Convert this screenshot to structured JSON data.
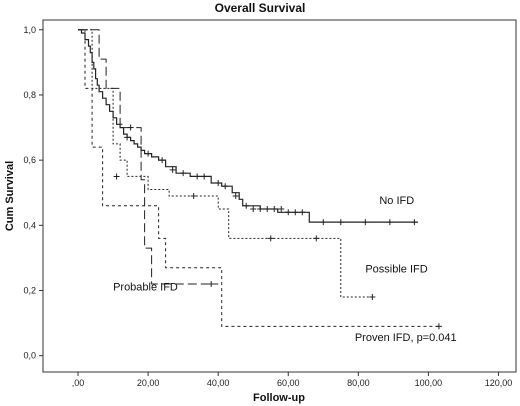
{
  "chart_data": {
    "type": "line",
    "subtype": "kaplan-meier",
    "title": "Overall Survival",
    "xlabel": "Follow-up",
    "ylabel": "Cum Survival",
    "xlim": [
      -10,
      125
    ],
    "ylim": [
      -0.05,
      1.03
    ],
    "x_ticks": [
      0,
      20,
      40,
      60,
      80,
      100,
      120
    ],
    "x_tick_labels": [
      ",00",
      "20,00",
      "40,00",
      "60,00",
      "80,00",
      "100,00",
      "120,00"
    ],
    "y_ticks": [
      0,
      0.2,
      0.4,
      0.6,
      0.8,
      1.0
    ],
    "y_tick_labels": [
      "0,0",
      "0,2",
      "0,4",
      "0,6",
      "0,8",
      "1,0"
    ],
    "grid": false,
    "series": [
      {
        "name": "No IFD",
        "line_style": "solid",
        "steps": [
          [
            0,
            1.0
          ],
          [
            1,
            0.99
          ],
          [
            2,
            0.97
          ],
          [
            3,
            0.95
          ],
          [
            3.5,
            0.93
          ],
          [
            4,
            0.9
          ],
          [
            4.5,
            0.88
          ],
          [
            5,
            0.85
          ],
          [
            5.5,
            0.83
          ],
          [
            6,
            0.81
          ],
          [
            7,
            0.79
          ],
          [
            8,
            0.77
          ],
          [
            9,
            0.75
          ],
          [
            10,
            0.73
          ],
          [
            11,
            0.71
          ],
          [
            12,
            0.7
          ],
          [
            13,
            0.68
          ],
          [
            14,
            0.67
          ],
          [
            15,
            0.66
          ],
          [
            16,
            0.65
          ],
          [
            17,
            0.64
          ],
          [
            18,
            0.63
          ],
          [
            19,
            0.62
          ],
          [
            21,
            0.61
          ],
          [
            23,
            0.6
          ],
          [
            25,
            0.58
          ],
          [
            28,
            0.56
          ],
          [
            32,
            0.55
          ],
          [
            38,
            0.53
          ],
          [
            41,
            0.52
          ],
          [
            44,
            0.5
          ],
          [
            46,
            0.48
          ],
          [
            47,
            0.46
          ],
          [
            52,
            0.45
          ],
          [
            57,
            0.44
          ],
          [
            61,
            0.44
          ],
          [
            66,
            0.41
          ],
          [
            97,
            0.41
          ]
        ],
        "censored": [
          [
            14,
            0.67
          ],
          [
            20,
            0.62
          ],
          [
            24,
            0.6
          ],
          [
            27,
            0.57
          ],
          [
            30,
            0.56
          ],
          [
            34,
            0.55
          ],
          [
            36,
            0.55
          ],
          [
            40,
            0.53
          ],
          [
            42,
            0.52
          ],
          [
            45,
            0.49
          ],
          [
            48,
            0.46
          ],
          [
            50,
            0.45
          ],
          [
            52,
            0.45
          ],
          [
            54,
            0.45
          ],
          [
            56,
            0.45
          ],
          [
            58,
            0.45
          ],
          [
            60,
            0.44
          ],
          [
            62,
            0.44
          ],
          [
            64,
            0.44
          ],
          [
            70,
            0.41
          ],
          [
            75,
            0.41
          ],
          [
            82,
            0.41
          ],
          [
            89,
            0.41
          ],
          [
            96,
            0.41
          ]
        ]
      },
      {
        "name": "Possible IFD",
        "line_style": "dotted",
        "steps": [
          [
            0,
            1.0
          ],
          [
            4,
            0.82
          ],
          [
            10,
            0.65
          ],
          [
            12,
            0.6
          ],
          [
            14,
            0.55
          ],
          [
            20,
            0.51
          ],
          [
            26,
            0.49
          ],
          [
            40,
            0.45
          ],
          [
            43,
            0.36
          ],
          [
            75,
            0.18
          ],
          [
            84,
            0.18
          ]
        ],
        "censored": [
          [
            11,
            0.55
          ],
          [
            33,
            0.49
          ],
          [
            55,
            0.36
          ],
          [
            68,
            0.36
          ],
          [
            84,
            0.18
          ]
        ]
      },
      {
        "name": "Probable IFD",
        "line_style": "dashed",
        "steps": [
          [
            0,
            1.0
          ],
          [
            6,
            0.91
          ],
          [
            8,
            0.82
          ],
          [
            12,
            0.71
          ],
          [
            13,
            0.7
          ],
          [
            18,
            0.54
          ],
          [
            19,
            0.33
          ],
          [
            21,
            0.22
          ],
          [
            40,
            0.22
          ]
        ],
        "censored": [
          [
            15,
            0.7
          ],
          [
            38,
            0.22
          ]
        ]
      },
      {
        "name": "Proven IFD, p=0.041",
        "line_style": "short-dashed",
        "steps": [
          [
            0,
            1.0
          ],
          [
            2,
            0.82
          ],
          [
            4,
            0.64
          ],
          [
            7,
            0.46
          ],
          [
            23,
            0.36
          ],
          [
            25,
            0.27
          ],
          [
            41,
            0.09
          ],
          [
            103,
            0.09
          ]
        ],
        "censored": [
          [
            103,
            0.09
          ]
        ]
      }
    ],
    "annotations": [
      {
        "text": "No IFD",
        "x": 86,
        "y": 0.465
      },
      {
        "text": "Possible IFD",
        "x": 82,
        "y": 0.255
      },
      {
        "text": "Probable IFD",
        "x": 10,
        "y": 0.2
      },
      {
        "text": "Proven IFD, p=0.041",
        "x": 79,
        "y": 0.045
      }
    ]
  }
}
